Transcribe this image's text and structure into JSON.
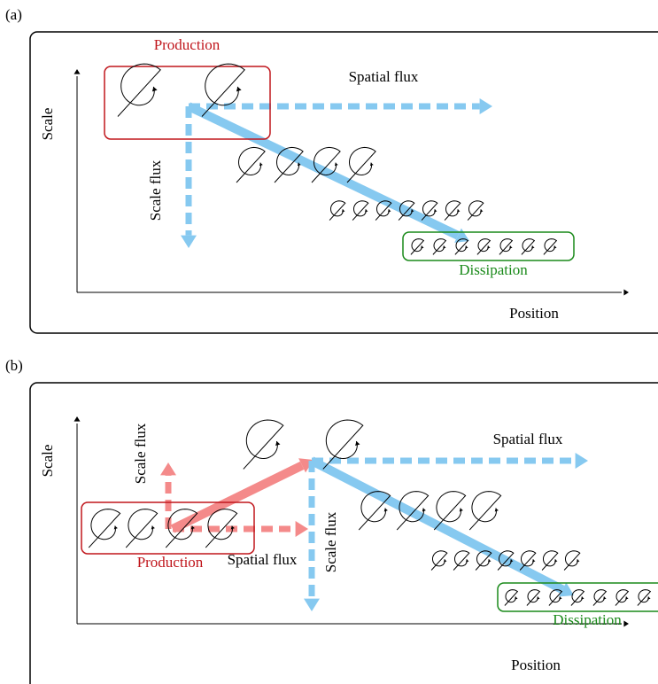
{
  "panels": [
    {
      "label": "(a)",
      "y_axis": "Scale",
      "x_axis": "Position",
      "production": "Production",
      "dissipation": "Dissipation",
      "spatial_flux": "Spatial flux",
      "scale_flux": "Scale flux"
    },
    {
      "label": "(b)",
      "y_axis": "Scale",
      "x_axis": "Position",
      "production": "Production",
      "dissipation": "Dissipation",
      "spatial_flux": "Spatial flux",
      "scale_flux": "Scale flux",
      "production_spatial_flux": "Spatial flux",
      "production_scale_flux": "Scale flux"
    }
  ]
}
